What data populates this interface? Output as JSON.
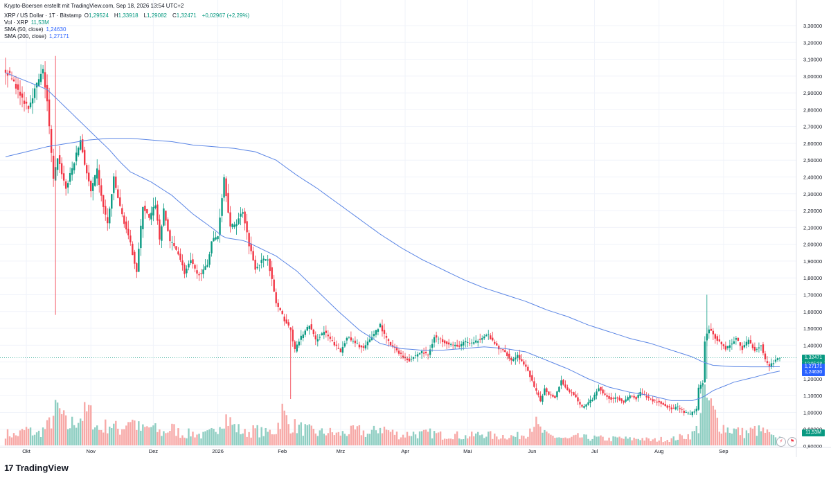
{
  "header": {
    "credit": "Krypto-Boersen erstellt mit TradingView.com, Sep 18, 2026 13:54 UTC+2",
    "symbol": "XRP / US Dollar · 1T · Bitstamp",
    "o_label": "O",
    "o_value": "1,29524",
    "h_label": "H",
    "h_value": "1,33918",
    "l_label": "L",
    "l_value": "1,29082",
    "c_label": "C",
    "c_value": "1,32471",
    "change": "+0,02967 (+2,29%)",
    "vol_label": "Vol · XRP",
    "vol_value": "11,53M",
    "sma50_label": "SMA (50, close)",
    "sma50_value": "1,24630",
    "sma200_label": "SMA (200, close)",
    "sma200_value": "1,27171"
  },
  "price_tags": {
    "last": "1,32471",
    "countdown": "12:05:38",
    "sma200": "1,27171",
    "sma50": "1,24630",
    "volume": "11,53M"
  },
  "brand": {
    "logo_text": "TradingView",
    "logo_mark": "17"
  },
  "colors": {
    "up": "#089981",
    "down": "#f23645",
    "vol_up": "#8fcec2",
    "vol_down": "#f7a9a7",
    "sma": "#5b86e5",
    "last_line": "#089981",
    "grid": "#f0f3fa"
  },
  "chart_data": {
    "type": "candlestick",
    "y_ticks": [
      "3,30000",
      "3,20000",
      "3,10000",
      "3,00000",
      "2,90000",
      "2,80000",
      "2,70000",
      "2,60000",
      "2,50000",
      "2,40000",
      "2,30000",
      "2,20000",
      "2,10000",
      "2,00000",
      "1,90000",
      "1,80000",
      "1,70000",
      "1,60000",
      "1,50000",
      "1,40000",
      "1,30000",
      "1,20000",
      "1,10000",
      "1,00000",
      "0,90000",
      "0,80000"
    ],
    "ylim": [
      0.78,
      3.36
    ],
    "x_ticks": [
      "Okt",
      "Nov",
      "Dez",
      "2026",
      "Feb",
      "Mrz",
      "Apr",
      "Mai",
      "Jun",
      "Jul",
      "Aug",
      "Sep"
    ],
    "x_tick_day": [
      10,
      41,
      71,
      102,
      133,
      161,
      192,
      222,
      253,
      283,
      314,
      345
    ],
    "num_days": 377,
    "price_anchors": [
      [
        0,
        3.05
      ],
      [
        5,
        2.97
      ],
      [
        8,
        2.88
      ],
      [
        12,
        2.82
      ],
      [
        16,
        2.95
      ],
      [
        19,
        3.03
      ],
      [
        21,
        2.85
      ],
      [
        24,
        2.38
      ],
      [
        26,
        2.52
      ],
      [
        30,
        2.33
      ],
      [
        34,
        2.49
      ],
      [
        37,
        2.62
      ],
      [
        39,
        2.48
      ],
      [
        42,
        2.31
      ],
      [
        45,
        2.44
      ],
      [
        47,
        2.28
      ],
      [
        50,
        2.12
      ],
      [
        53,
        2.39
      ],
      [
        56,
        2.22
      ],
      [
        61,
        2.0
      ],
      [
        64,
        1.84
      ],
      [
        67,
        2.23
      ],
      [
        70,
        2.15
      ],
      [
        73,
        2.24
      ],
      [
        75,
        2.03
      ],
      [
        77,
        2.2
      ],
      [
        80,
        2.02
      ],
      [
        84,
        1.95
      ],
      [
        87,
        1.83
      ],
      [
        90,
        1.9
      ],
      [
        93,
        1.82
      ],
      [
        96,
        1.84
      ],
      [
        98,
        1.88
      ],
      [
        100,
        2.02
      ],
      [
        103,
        2.05
      ],
      [
        106,
        2.4
      ],
      [
        109,
        2.1
      ],
      [
        112,
        2.13
      ],
      [
        115,
        2.2
      ],
      [
        118,
        2.0
      ],
      [
        121,
        1.86
      ],
      [
        124,
        1.9
      ],
      [
        127,
        1.92
      ],
      [
        131,
        1.65
      ],
      [
        135,
        1.55
      ],
      [
        138,
        1.49
      ],
      [
        140,
        1.37
      ],
      [
        143,
        1.45
      ],
      [
        147,
        1.52
      ],
      [
        150,
        1.43
      ],
      [
        154,
        1.48
      ],
      [
        158,
        1.42
      ],
      [
        162,
        1.36
      ],
      [
        165,
        1.45
      ],
      [
        169,
        1.41
      ],
      [
        173,
        1.38
      ],
      [
        176,
        1.43
      ],
      [
        178,
        1.47
      ],
      [
        181,
        1.52
      ],
      [
        183,
        1.46
      ],
      [
        186,
        1.4
      ],
      [
        189,
        1.37
      ],
      [
        192,
        1.33
      ],
      [
        195,
        1.31
      ],
      [
        198,
        1.34
      ],
      [
        201,
        1.36
      ],
      [
        204,
        1.34
      ],
      [
        207,
        1.45
      ],
      [
        210,
        1.43
      ],
      [
        214,
        1.41
      ],
      [
        218,
        1.39
      ],
      [
        222,
        1.42
      ],
      [
        226,
        1.41
      ],
      [
        230,
        1.45
      ],
      [
        233,
        1.46
      ],
      [
        235,
        1.42
      ],
      [
        238,
        1.38
      ],
      [
        241,
        1.36
      ],
      [
        244,
        1.31
      ],
      [
        247,
        1.34
      ],
      [
        250,
        1.28
      ],
      [
        252,
        1.25
      ],
      [
        255,
        1.15
      ],
      [
        258,
        1.07
      ],
      [
        260,
        1.14
      ],
      [
        262,
        1.11
      ],
      [
        265,
        1.09
      ],
      [
        268,
        1.19
      ],
      [
        271,
        1.13
      ],
      [
        274,
        1.11
      ],
      [
        276,
        1.06
      ],
      [
        278,
        1.03
      ],
      [
        281,
        1.06
      ],
      [
        283,
        1.08
      ],
      [
        286,
        1.15
      ],
      [
        289,
        1.1
      ],
      [
        292,
        1.08
      ],
      [
        295,
        1.09
      ],
      [
        298,
        1.06
      ],
      [
        301,
        1.1
      ],
      [
        304,
        1.08
      ],
      [
        306,
        1.12
      ],
      [
        309,
        1.09
      ],
      [
        312,
        1.07
      ],
      [
        315,
        1.06
      ],
      [
        318,
        1.04
      ],
      [
        321,
        1.02
      ],
      [
        324,
        1.03
      ],
      [
        327,
        1.0
      ],
      [
        330,
        0.99
      ],
      [
        333,
        1.02
      ],
      [
        334,
        1.14
      ],
      [
        336,
        1.18
      ],
      [
        337,
        1.43
      ],
      [
        339,
        1.5
      ],
      [
        341,
        1.46
      ],
      [
        344,
        1.42
      ],
      [
        347,
        1.38
      ],
      [
        350,
        1.41
      ],
      [
        352,
        1.44
      ],
      [
        355,
        1.38
      ],
      [
        358,
        1.43
      ],
      [
        361,
        1.37
      ],
      [
        364,
        1.4
      ],
      [
        366,
        1.31
      ],
      [
        368,
        1.27
      ],
      [
        370,
        1.3
      ],
      [
        372,
        1.32
      ]
    ],
    "volume_anchors": [
      [
        0,
        20
      ],
      [
        5,
        16
      ],
      [
        10,
        26
      ],
      [
        15,
        18
      ],
      [
        20,
        30
      ],
      [
        25,
        60
      ],
      [
        30,
        30
      ],
      [
        35,
        45
      ],
      [
        40,
        55
      ],
      [
        45,
        25
      ],
      [
        50,
        35
      ],
      [
        55,
        25
      ],
      [
        60,
        45
      ],
      [
        65,
        25
      ],
      [
        70,
        30
      ],
      [
        75,
        20
      ],
      [
        80,
        28
      ],
      [
        85,
        18
      ],
      [
        90,
        20
      ],
      [
        95,
        16
      ],
      [
        100,
        22
      ],
      [
        105,
        50
      ],
      [
        110,
        30
      ],
      [
        115,
        20
      ],
      [
        120,
        25
      ],
      [
        125,
        20
      ],
      [
        130,
        25
      ],
      [
        133,
        55
      ],
      [
        136,
        35
      ],
      [
        140,
        30
      ],
      [
        145,
        25
      ],
      [
        150,
        20
      ],
      [
        155,
        22
      ],
      [
        160,
        18
      ],
      [
        165,
        22
      ],
      [
        170,
        24
      ],
      [
        175,
        18
      ],
      [
        180,
        30
      ],
      [
        185,
        22
      ],
      [
        190,
        16
      ],
      [
        195,
        20
      ],
      [
        200,
        18
      ],
      [
        205,
        20
      ],
      [
        210,
        16
      ],
      [
        215,
        18
      ],
      [
        220,
        14
      ],
      [
        225,
        16
      ],
      [
        230,
        20
      ],
      [
        235,
        14
      ],
      [
        240,
        16
      ],
      [
        245,
        14
      ],
      [
        250,
        20
      ],
      [
        254,
        40
      ],
      [
        256,
        28
      ],
      [
        260,
        16
      ],
      [
        265,
        14
      ],
      [
        270,
        10
      ],
      [
        275,
        14
      ],
      [
        280,
        12
      ],
      [
        285,
        12
      ],
      [
        290,
        10
      ],
      [
        295,
        12
      ],
      [
        300,
        10
      ],
      [
        305,
        12
      ],
      [
        310,
        8
      ],
      [
        315,
        10
      ],
      [
        320,
        10
      ],
      [
        325,
        14
      ],
      [
        330,
        18
      ],
      [
        333,
        30
      ],
      [
        335,
        95
      ],
      [
        337,
        75
      ],
      [
        340,
        55
      ],
      [
        343,
        35
      ],
      [
        346,
        28
      ],
      [
        350,
        25
      ],
      [
        355,
        20
      ],
      [
        360,
        25
      ],
      [
        365,
        22
      ],
      [
        370,
        10
      ],
      [
        372,
        12
      ]
    ],
    "volume_max_label": "11,53M",
    "sma50_anchors": [
      [
        0,
        3.02
      ],
      [
        10,
        2.97
      ],
      [
        20,
        2.92
      ],
      [
        30,
        2.8
      ],
      [
        40,
        2.68
      ],
      [
        45,
        2.62
      ],
      [
        50,
        2.56
      ],
      [
        55,
        2.49
      ],
      [
        60,
        2.43
      ],
      [
        70,
        2.37
      ],
      [
        80,
        2.29
      ],
      [
        90,
        2.18
      ],
      [
        100,
        2.09
      ],
      [
        105,
        2.04
      ],
      [
        110,
        2.03
      ],
      [
        115,
        2.02
      ],
      [
        120,
        1.99
      ],
      [
        130,
        1.93
      ],
      [
        140,
        1.84
      ],
      [
        150,
        1.72
      ],
      [
        160,
        1.6
      ],
      [
        170,
        1.49
      ],
      [
        180,
        1.41
      ],
      [
        190,
        1.38
      ],
      [
        200,
        1.37
      ],
      [
        210,
        1.37
      ],
      [
        220,
        1.38
      ],
      [
        230,
        1.39
      ],
      [
        240,
        1.38
      ],
      [
        250,
        1.36
      ],
      [
        260,
        1.31
      ],
      [
        270,
        1.26
      ],
      [
        280,
        1.2
      ],
      [
        290,
        1.15
      ],
      [
        300,
        1.12
      ],
      [
        310,
        1.1
      ],
      [
        320,
        1.07
      ],
      [
        330,
        1.07
      ],
      [
        335,
        1.09
      ],
      [
        340,
        1.13
      ],
      [
        350,
        1.18
      ],
      [
        360,
        1.21
      ],
      [
        366,
        1.23
      ],
      [
        372,
        1.246
      ]
    ],
    "sma200_anchors": [
      [
        0,
        2.52
      ],
      [
        10,
        2.55
      ],
      [
        20,
        2.58
      ],
      [
        30,
        2.6
      ],
      [
        40,
        2.62
      ],
      [
        50,
        2.63
      ],
      [
        60,
        2.63
      ],
      [
        70,
        2.62
      ],
      [
        80,
        2.61
      ],
      [
        90,
        2.59
      ],
      [
        100,
        2.58
      ],
      [
        110,
        2.57
      ],
      [
        120,
        2.55
      ],
      [
        130,
        2.5
      ],
      [
        140,
        2.41
      ],
      [
        150,
        2.33
      ],
      [
        160,
        2.24
      ],
      [
        170,
        2.15
      ],
      [
        180,
        2.06
      ],
      [
        190,
        1.98
      ],
      [
        200,
        1.91
      ],
      [
        210,
        1.85
      ],
      [
        220,
        1.79
      ],
      [
        230,
        1.74
      ],
      [
        240,
        1.7
      ],
      [
        250,
        1.66
      ],
      [
        260,
        1.61
      ],
      [
        270,
        1.57
      ],
      [
        280,
        1.52
      ],
      [
        290,
        1.48
      ],
      [
        300,
        1.44
      ],
      [
        310,
        1.41
      ],
      [
        320,
        1.37
      ],
      [
        330,
        1.33
      ],
      [
        335,
        1.3
      ],
      [
        340,
        1.28
      ],
      [
        350,
        1.272
      ],
      [
        360,
        1.271
      ],
      [
        372,
        1.2717
      ]
    ]
  }
}
